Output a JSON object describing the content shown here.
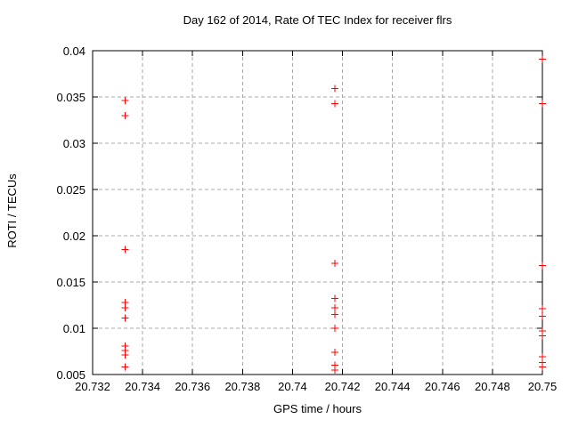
{
  "chart_data": {
    "type": "scatter",
    "title": "Day 162 of 2014, Rate Of TEC Index for receiver flrs",
    "xlabel": "GPS time / hours",
    "ylabel": "ROTI / TECUs",
    "xlim": [
      20.732,
      20.75
    ],
    "ylim": [
      0.005,
      0.04
    ],
    "xticks": [
      20.732,
      20.734,
      20.736,
      20.738,
      20.74,
      20.742,
      20.744,
      20.746,
      20.748,
      20.75
    ],
    "xtick_labels": [
      "20.732",
      "20.734",
      "20.736",
      "20.738",
      "20.74",
      "20.742",
      "20.744",
      "20.746",
      "20.748",
      "20.75"
    ],
    "yticks": [
      0.005,
      0.01,
      0.015,
      0.02,
      0.025,
      0.03,
      0.035,
      0.04
    ],
    "ytick_labels": [
      "0.005",
      "0.01",
      "0.015",
      "0.02",
      "0.025",
      "0.03",
      "0.035",
      "0.04"
    ],
    "grid": true,
    "legend": "none",
    "marker": "plus",
    "marker_size": 9,
    "colors": {
      "marker": "#ff0000",
      "grid": "#aaaaaa",
      "axis": "#000000",
      "background": "#ffffff"
    },
    "series": [
      {
        "name": "ROTI",
        "points": [
          [
            20.7333,
            0.0346
          ],
          [
            20.7333,
            0.033
          ],
          [
            20.7333,
            0.0185
          ],
          [
            20.7333,
            0.0128
          ],
          [
            20.7333,
            0.0122
          ],
          [
            20.7333,
            0.0111
          ],
          [
            20.7333,
            0.0081
          ],
          [
            20.7333,
            0.0076
          ],
          [
            20.7333,
            0.0071
          ],
          [
            20.7333,
            0.0058
          ],
          [
            20.7417,
            0.0359
          ],
          [
            20.7417,
            0.0343
          ],
          [
            20.7417,
            0.017
          ],
          [
            20.7417,
            0.0132
          ],
          [
            20.7417,
            0.0122
          ],
          [
            20.7417,
            0.0115
          ],
          [
            20.7417,
            0.01
          ],
          [
            20.7417,
            0.0074
          ],
          [
            20.7417,
            0.006
          ],
          [
            20.7417,
            0.0055
          ],
          [
            20.75,
            0.0391
          ],
          [
            20.75,
            0.0343
          ],
          [
            20.75,
            0.0168
          ],
          [
            20.75,
            0.0121
          ],
          [
            20.75,
            0.0113
          ],
          [
            20.75,
            0.0097
          ],
          [
            20.75,
            0.0092
          ],
          [
            20.75,
            0.0069
          ],
          [
            20.75,
            0.0063
          ],
          [
            20.75,
            0.0058
          ]
        ]
      }
    ]
  }
}
